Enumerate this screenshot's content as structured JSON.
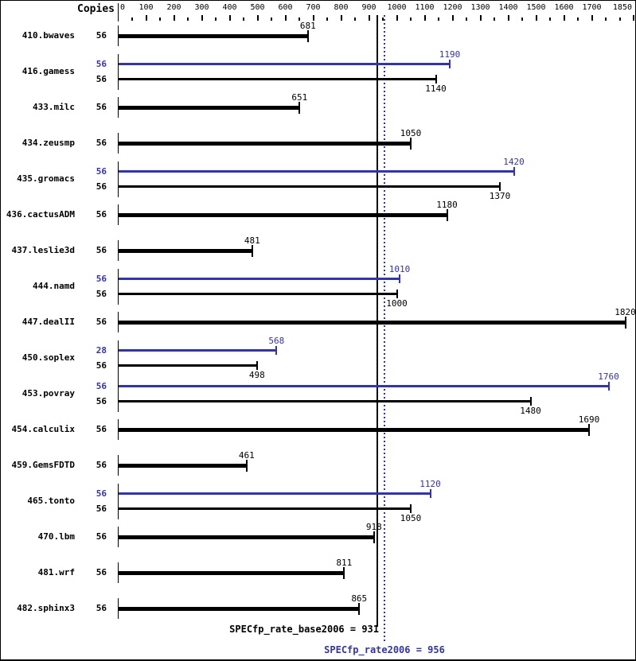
{
  "chart_data": {
    "type": "bar",
    "orientation": "horizontal",
    "copies_header": "Copies",
    "colors": {
      "base": "#000000",
      "peak": "#3333aa"
    },
    "axis": {
      "min": 0,
      "max": 1850,
      "tick_step": 50,
      "labeled_ticks": [
        0,
        100,
        200,
        300,
        400,
        500,
        600,
        700,
        800,
        900,
        1000,
        1100,
        1200,
        1300,
        1400,
        1500,
        1600,
        1700,
        1850
      ]
    },
    "benchmarks": [
      {
        "name": "410.bwaves",
        "runs": [
          {
            "kind": "base",
            "copies": 56,
            "value": 681
          }
        ]
      },
      {
        "name": "416.gamess",
        "runs": [
          {
            "kind": "peak",
            "copies": 56,
            "value": 1190
          },
          {
            "kind": "base",
            "copies": 56,
            "value": 1140
          }
        ]
      },
      {
        "name": "433.milc",
        "runs": [
          {
            "kind": "base",
            "copies": 56,
            "value": 651
          }
        ]
      },
      {
        "name": "434.zeusmp",
        "runs": [
          {
            "kind": "base",
            "copies": 56,
            "value": 1050
          }
        ]
      },
      {
        "name": "435.gromacs",
        "runs": [
          {
            "kind": "peak",
            "copies": 56,
            "value": 1420
          },
          {
            "kind": "base",
            "copies": 56,
            "value": 1370
          }
        ]
      },
      {
        "name": "436.cactusADM",
        "runs": [
          {
            "kind": "base",
            "copies": 56,
            "value": 1180
          }
        ]
      },
      {
        "name": "437.leslie3d",
        "runs": [
          {
            "kind": "base",
            "copies": 56,
            "value": 481
          }
        ]
      },
      {
        "name": "444.namd",
        "runs": [
          {
            "kind": "peak",
            "copies": 56,
            "value": 1010
          },
          {
            "kind": "base",
            "copies": 56,
            "value": 1000
          }
        ]
      },
      {
        "name": "447.dealII",
        "runs": [
          {
            "kind": "base",
            "copies": 56,
            "value": 1820
          }
        ]
      },
      {
        "name": "450.soplex",
        "runs": [
          {
            "kind": "peak",
            "copies": 28,
            "value": 568
          },
          {
            "kind": "base",
            "copies": 56,
            "value": 498
          }
        ]
      },
      {
        "name": "453.povray",
        "runs": [
          {
            "kind": "peak",
            "copies": 56,
            "value": 1760
          },
          {
            "kind": "base",
            "copies": 56,
            "value": 1480
          }
        ]
      },
      {
        "name": "454.calculix",
        "runs": [
          {
            "kind": "base",
            "copies": 56,
            "value": 1690
          }
        ]
      },
      {
        "name": "459.GemsFDTD",
        "runs": [
          {
            "kind": "base",
            "copies": 56,
            "value": 461
          }
        ]
      },
      {
        "name": "465.tonto",
        "runs": [
          {
            "kind": "peak",
            "copies": 56,
            "value": 1120
          },
          {
            "kind": "base",
            "copies": 56,
            "value": 1050
          }
        ]
      },
      {
        "name": "470.lbm",
        "runs": [
          {
            "kind": "base",
            "copies": 56,
            "value": 918
          }
        ]
      },
      {
        "name": "481.wrf",
        "runs": [
          {
            "kind": "base",
            "copies": 56,
            "value": 811
          }
        ]
      },
      {
        "name": "482.sphinx3",
        "runs": [
          {
            "kind": "base",
            "copies": 56,
            "value": 865
          }
        ]
      }
    ],
    "reference_lines": [
      {
        "kind": "base",
        "value": 931,
        "style": "solid",
        "color": "#000000"
      },
      {
        "kind": "peak",
        "value": 956,
        "style": "dotted",
        "color": "#3333aa"
      }
    ],
    "base_summary": "SPECfp_rate_base2006 = 931",
    "peak_summary": "SPECfp_rate2006 = 956"
  }
}
